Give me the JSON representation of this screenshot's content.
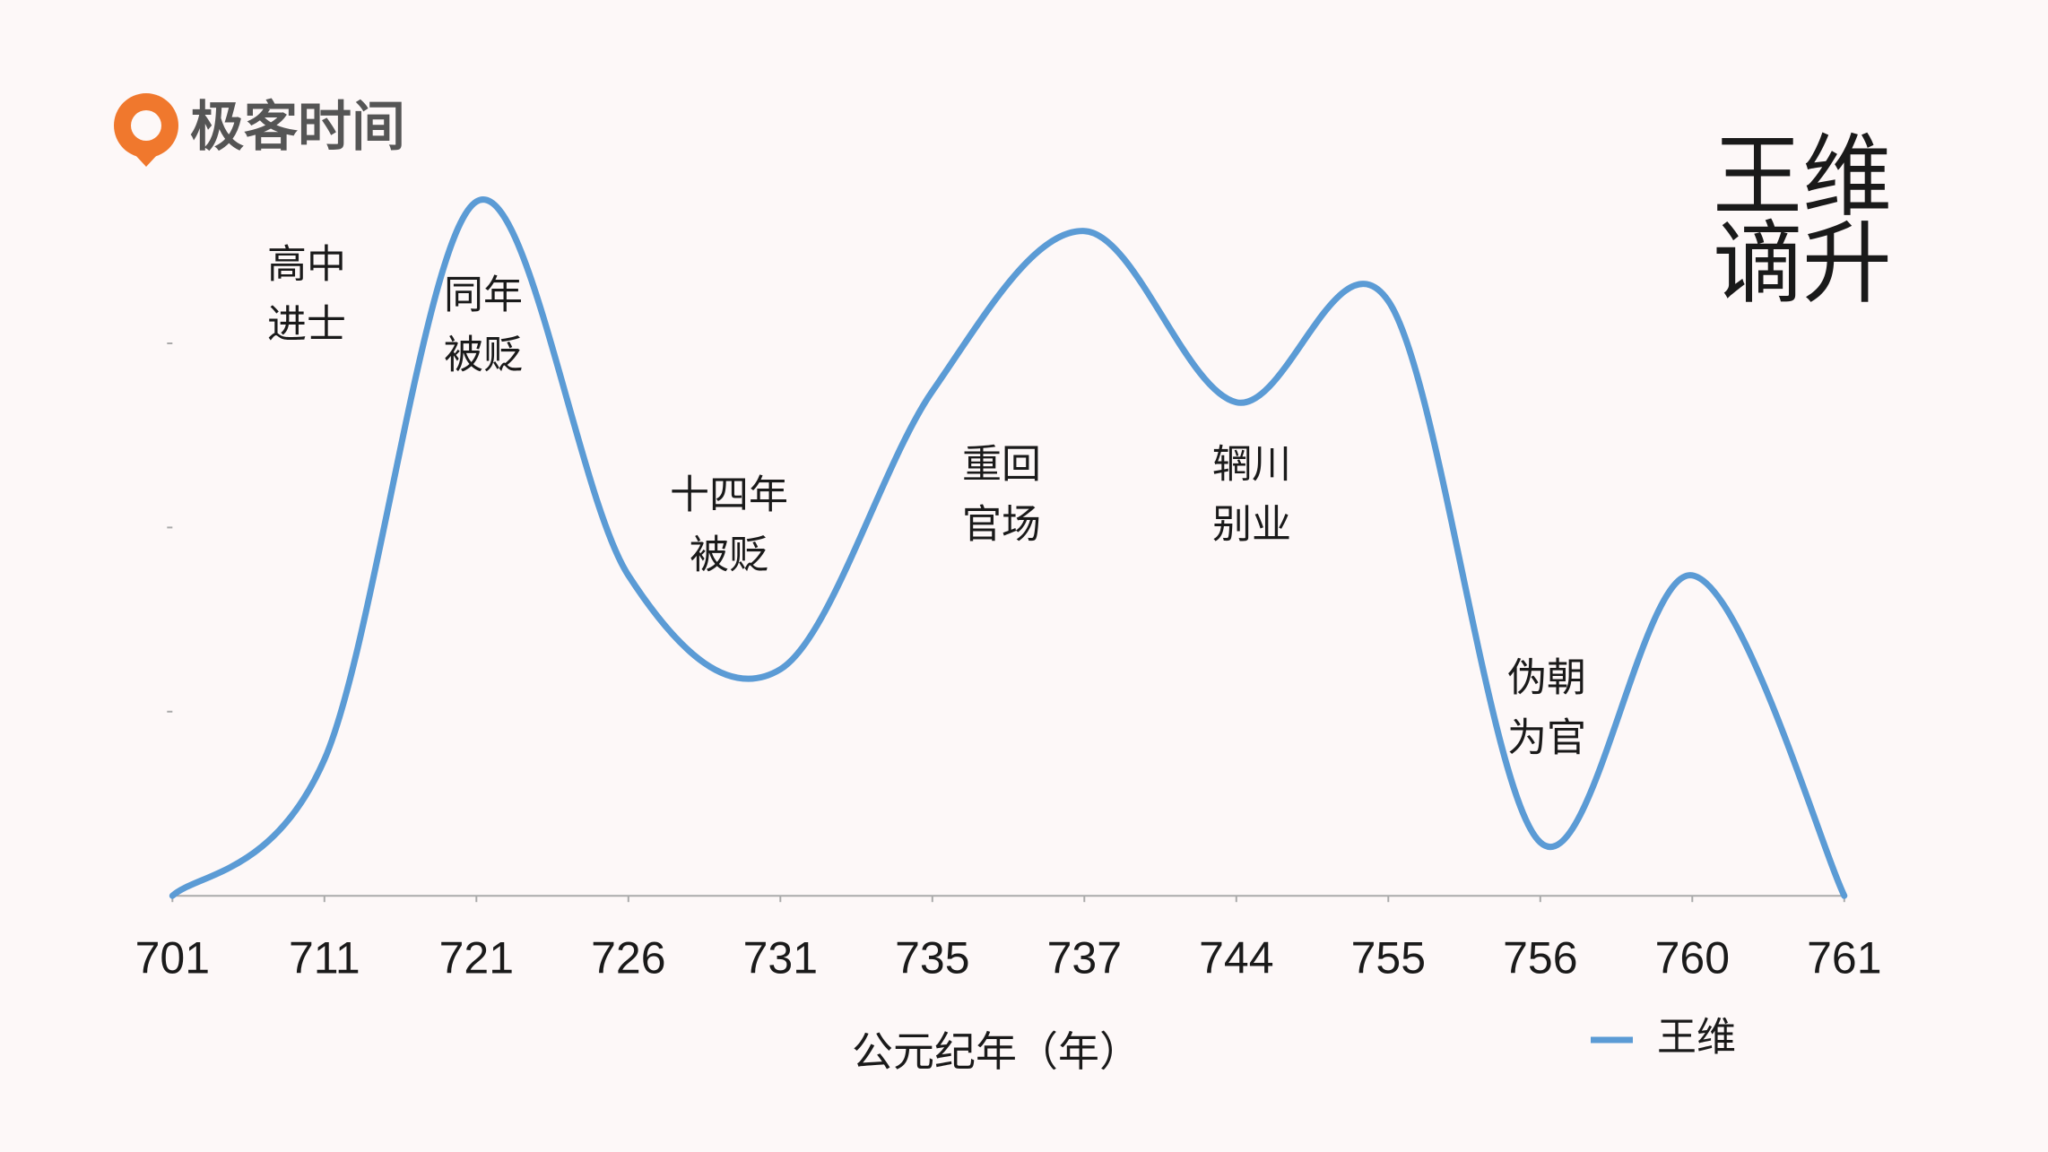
{
  "logo": "极客时间",
  "chart_data": {
    "type": "line",
    "title": [
      "王维",
      "谪升"
    ],
    "x_label": "公元纪年（年）",
    "categories": [
      "701",
      "711",
      "721",
      "726",
      "731",
      "735",
      "737",
      "744",
      "755",
      "756",
      "760",
      "761"
    ],
    "series": [
      {
        "name": "王维",
        "color": "#5b9bd5",
        "values": [
          0,
          0.74,
          3.77,
          1.74,
          1.23,
          2.74,
          3.61,
          2.68,
          3.23,
          0.29,
          1.74,
          0
        ]
      }
    ],
    "annotations": [
      [
        "高中",
        "进士"
      ],
      [
        "同年",
        "被贬"
      ],
      [
        "十四年",
        "被贬"
      ],
      [
        "重回",
        "官场"
      ],
      [
        "辋川",
        "别业"
      ],
      [
        "伪朝",
        "为官"
      ]
    ],
    "ylim": [
      0,
      4
    ],
    "yticks": [
      1,
      2,
      3
    ],
    "grid": false,
    "legend": "bottom-right"
  }
}
